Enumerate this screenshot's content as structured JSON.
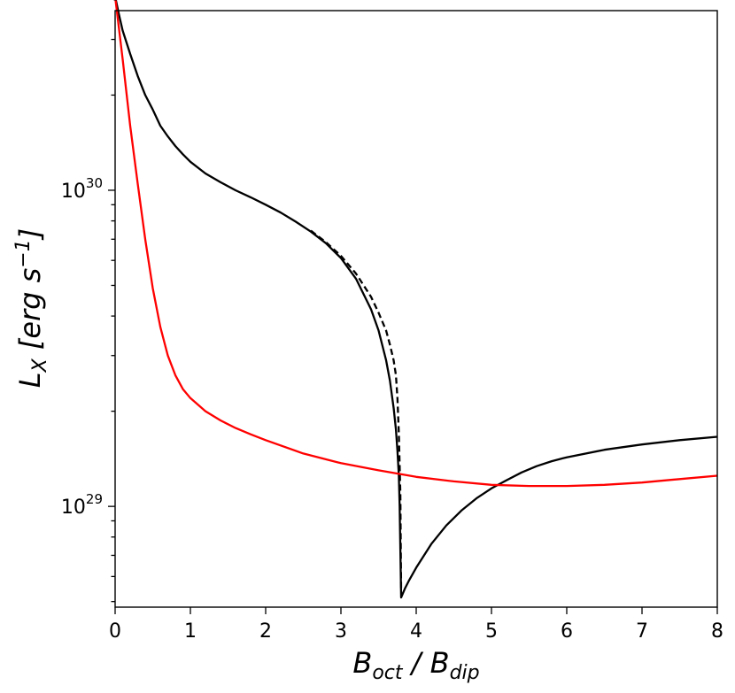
{
  "chart_data": {
    "type": "line",
    "title": "",
    "xlabel": {
      "main": "B",
      "sub1": "oct",
      "sep": " / B",
      "sub2": "dip"
    },
    "ylabel": {
      "main": "L",
      "sub": "X",
      "unit": " [erg s",
      "exp": "−1",
      "close": "]"
    },
    "x_ticks": [
      "0",
      "1",
      "2",
      "3",
      "4",
      "5",
      "6",
      "7",
      "8"
    ],
    "y_ticks": [
      {
        "value": 1e+30,
        "base": "10",
        "exp": "30"
      },
      {
        "value": 1e+29,
        "base": "10",
        "exp": "29"
      }
    ],
    "xlim": [
      0,
      8
    ],
    "ylim": [
      4.8e+28,
      3.7e+30
    ],
    "y_scale": "log",
    "grid": false,
    "legend": "none",
    "series": [
      {
        "color": "#000000",
        "style": "solid",
        "x": [
          0,
          0.05,
          0.1,
          0.2,
          0.3,
          0.4,
          0.5,
          0.6,
          0.7,
          0.8,
          0.9,
          1.0,
          1.2,
          1.4,
          1.6,
          1.8,
          2.0,
          2.2,
          2.4,
          2.6,
          2.8,
          3.0,
          3.2,
          3.4,
          3.5,
          3.6,
          3.65,
          3.7,
          3.73,
          3.75,
          3.77,
          3.78,
          3.8,
          3.85,
          3.9,
          4.0,
          4.2,
          4.4,
          4.6,
          4.8,
          5.0,
          5.2,
          5.4,
          5.6,
          5.8,
          6.0,
          6.5,
          7.0,
          7.5,
          8.0
        ],
        "y": [
          4.1e+30,
          3.6e+30,
          3.2e+30,
          2.7e+30,
          2.3e+30,
          2e+30,
          1.8e+30,
          1.6e+30,
          1.48e+30,
          1.38e+30,
          1.3e+30,
          1.23e+30,
          1.13e+30,
          1.06e+30,
          1e+30,
          9.5e+29,
          9e+29,
          8.5e+29,
          7.95e+29,
          7.4e+29,
          6.8e+29,
          6.1e+29,
          5.25e+29,
          4.2e+29,
          3.6e+29,
          2.9e+29,
          2.5e+29,
          2.05e+29,
          1.75e+29,
          1.5e+29,
          1.25e+29,
          1e+29,
          5.15e+28,
          5.5e+28,
          5.8e+28,
          6.4e+28,
          7.6e+28,
          8.7e+28,
          9.7e+28,
          1.06e+29,
          1.14e+29,
          1.21e+29,
          1.28e+29,
          1.34e+29,
          1.39e+29,
          1.43e+29,
          1.51e+29,
          1.57e+29,
          1.62e+29,
          1.66e+29
        ]
      },
      {
        "color": "#000000",
        "style": "dashed",
        "x": [
          2.6,
          2.8,
          3.0,
          3.2,
          3.4,
          3.5,
          3.6,
          3.65,
          3.7,
          3.73,
          3.75,
          3.77,
          3.79,
          3.8
        ],
        "y": [
          7.45e+29,
          6.85e+29,
          6.2e+29,
          5.45e+29,
          4.6e+29,
          4.1e+29,
          3.6e+29,
          3.25e+29,
          2.9e+29,
          2.6e+29,
          2.2e+29,
          1.7e+29,
          1.1e+29,
          5.4e+28
        ]
      },
      {
        "color": "#ff0000",
        "style": "solid",
        "x": [
          0,
          0.1,
          0.2,
          0.3,
          0.4,
          0.5,
          0.6,
          0.7,
          0.8,
          0.9,
          1.0,
          1.2,
          1.4,
          1.6,
          1.8,
          2.0,
          2.5,
          3.0,
          3.5,
          4.0,
          4.5,
          5.0,
          5.5,
          6.0,
          6.5,
          7.0,
          7.5,
          8.0
        ],
        "y": [
          4.1e+30,
          2.6e+30,
          1.6e+30,
          1.05e+30,
          7e+29,
          4.9e+29,
          3.7e+29,
          3e+29,
          2.6e+29,
          2.35e+29,
          2.2e+29,
          2e+29,
          1.87e+29,
          1.77e+29,
          1.69e+29,
          1.62e+29,
          1.47e+29,
          1.37e+29,
          1.3e+29,
          1.24e+29,
          1.2e+29,
          1.17e+29,
          1.16e+29,
          1.16e+29,
          1.17e+29,
          1.19e+29,
          1.22e+29,
          1.25e+29
        ]
      }
    ],
    "markers": [
      {
        "x": 0,
        "y": 4.1e+30,
        "color": "#000000"
      }
    ]
  }
}
